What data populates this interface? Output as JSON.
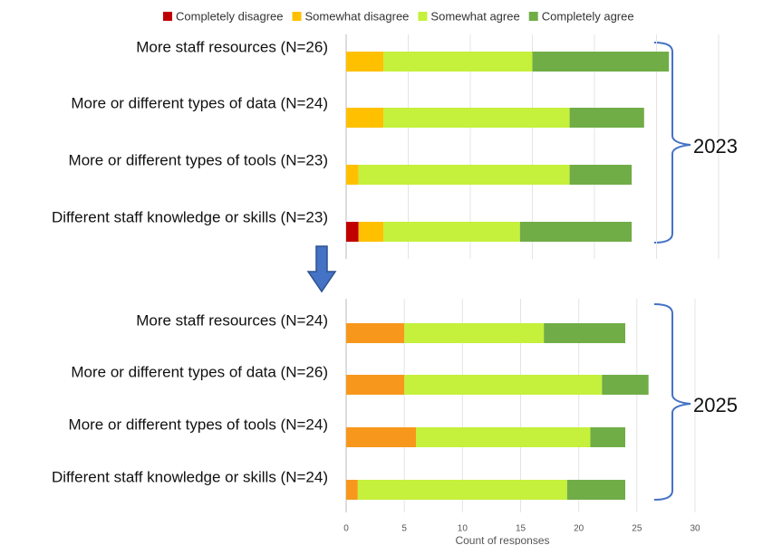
{
  "chart_data": [
    {
      "type": "bar",
      "orientation": "horizontal",
      "stacked": true,
      "categories": [
        "More staff resources (N=26)",
        "More or different types of data (N=24)",
        "More or different types of tools (N=23)",
        "Different staff knowledge or skills (N=23)"
      ],
      "series": [
        {
          "name": "Completely disagree",
          "color": "#c00000",
          "values": [
            0,
            0,
            0,
            1
          ]
        },
        {
          "name": "Somewhat disagree",
          "color": "#ffc000",
          "values": [
            3,
            3,
            1,
            2
          ]
        },
        {
          "name": "Somewhat agree",
          "color": "#c5f03c",
          "values": [
            12,
            15,
            17,
            11
          ]
        },
        {
          "name": "Completely agree",
          "color": "#70ad47",
          "values": [
            11,
            6,
            5,
            9
          ]
        }
      ],
      "xlim": [
        0,
        30
      ],
      "xticks": [
        0,
        5,
        10,
        15,
        20,
        25,
        30
      ],
      "tick_labels": false,
      "grid": true,
      "annotation": "2023",
      "legend": "top"
    },
    {
      "type": "bar",
      "orientation": "horizontal",
      "stacked": true,
      "categories": [
        "More staff resources (N=24)",
        "More or different types of data (N=26)",
        "More or different types of tools (N=24)",
        "Different staff knowledge or skills (N=24)"
      ],
      "series": [
        {
          "color": "#f7981d",
          "values": [
            5,
            5,
            6,
            1
          ]
        },
        {
          "color": "#c5f03c",
          "values": [
            12,
            17,
            15,
            18
          ]
        },
        {
          "color": "#70ad47",
          "values": [
            7,
            4,
            3,
            5
          ]
        }
      ],
      "xlim": [
        0,
        30
      ],
      "xticks": [
        0,
        5,
        10,
        15,
        20,
        25,
        30
      ],
      "tick_labels": true,
      "grid": true,
      "xlabel": "Count of responses",
      "annotation": "2025"
    }
  ]
}
